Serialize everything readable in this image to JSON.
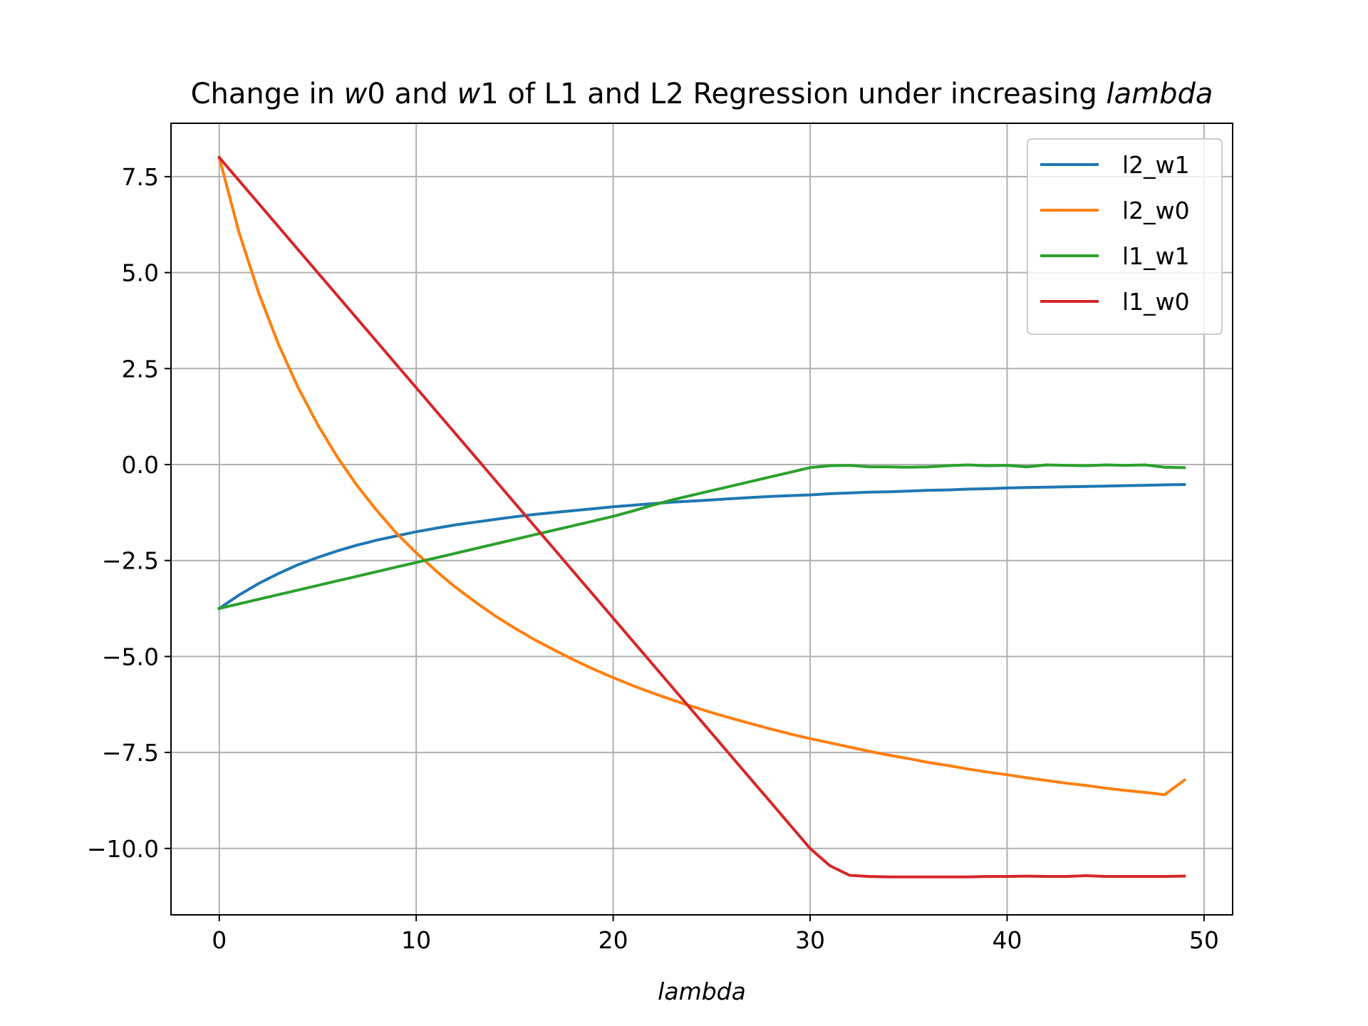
{
  "chart_data": {
    "type": "line",
    "title_parts": [
      {
        "text": "Change in ",
        "italic": false
      },
      {
        "text": "w",
        "italic": true
      },
      {
        "text": "0 and ",
        "italic": false
      },
      {
        "text": "w",
        "italic": true
      },
      {
        "text": "1 of L1 and L2 Regression under increasing ",
        "italic": false
      },
      {
        "text": "lambda",
        "italic": true
      }
    ],
    "xlabel": "lambda",
    "ylabel": "",
    "xlim": [
      -2.45,
      51.45
    ],
    "ylim": [
      -11.73,
      8.89
    ],
    "xticks": [
      0,
      10,
      20,
      30,
      40,
      50
    ],
    "xtick_labels": [
      "0",
      "10",
      "20",
      "30",
      "40",
      "50"
    ],
    "yticks": [
      7.5,
      5.0,
      2.5,
      0.0,
      -2.5,
      -5.0,
      -7.5,
      -10.0
    ],
    "ytick_labels": [
      "7.5",
      "5.0",
      "2.5",
      "0.0",
      "−2.5",
      "−5.0",
      "−7.5",
      "−10.0"
    ],
    "grid": true,
    "legend_position": "top-right",
    "x": [
      0,
      1,
      2,
      3,
      4,
      5,
      6,
      7,
      8,
      9,
      10,
      11,
      12,
      13,
      14,
      15,
      16,
      17,
      18,
      19,
      20,
      21,
      22,
      23,
      24,
      25,
      26,
      27,
      28,
      29,
      30,
      31,
      32,
      33,
      34,
      35,
      36,
      37,
      38,
      39,
      40,
      41,
      42,
      43,
      44,
      45,
      46,
      47,
      48,
      49
    ],
    "series": [
      {
        "name": "l2_w1",
        "color": "#1f77b4",
        "values": [
          -3.75,
          -3.4,
          -3.1,
          -2.84,
          -2.61,
          -2.42,
          -2.25,
          -2.1,
          -1.97,
          -1.86,
          -1.75,
          -1.66,
          -1.57,
          -1.5,
          -1.43,
          -1.36,
          -1.3,
          -1.25,
          -1.2,
          -1.15,
          -1.1,
          -1.06,
          -1.02,
          -0.98,
          -0.95,
          -0.92,
          -0.89,
          -0.86,
          -0.83,
          -0.81,
          -0.79,
          -0.76,
          -0.74,
          -0.72,
          -0.71,
          -0.69,
          -0.67,
          -0.66,
          -0.64,
          -0.63,
          -0.61,
          -0.6,
          -0.59,
          -0.58,
          -0.57,
          -0.56,
          -0.55,
          -0.54,
          -0.53,
          -0.52
        ]
      },
      {
        "name": "l2_w0",
        "color": "#ff7f0e",
        "values": [
          8.0,
          6.05,
          4.47,
          3.14,
          2.01,
          1.04,
          0.19,
          -0.55,
          -1.2,
          -1.79,
          -2.3,
          -2.77,
          -3.2,
          -3.58,
          -3.94,
          -4.26,
          -4.56,
          -4.83,
          -5.09,
          -5.33,
          -5.55,
          -5.76,
          -5.95,
          -6.13,
          -6.3,
          -6.46,
          -6.61,
          -6.75,
          -6.89,
          -7.02,
          -7.14,
          -7.25,
          -7.36,
          -7.47,
          -7.57,
          -7.66,
          -7.76,
          -7.84,
          -7.93,
          -8.01,
          -8.08,
          -8.16,
          -8.23,
          -8.3,
          -8.36,
          -8.43,
          -8.49,
          -8.54,
          -8.6,
          -8.22
        ]
      },
      {
        "name": "l1_w1",
        "color": "#2ca02c",
        "values": [
          -3.75,
          -3.63,
          -3.51,
          -3.39,
          -3.27,
          -3.15,
          -3.03,
          -2.91,
          -2.79,
          -2.67,
          -2.55,
          -2.43,
          -2.31,
          -2.19,
          -2.07,
          -1.95,
          -1.83,
          -1.71,
          -1.59,
          -1.47,
          -1.35,
          -1.21,
          -1.06,
          -0.92,
          -0.8,
          -0.68,
          -0.56,
          -0.44,
          -0.32,
          -0.2,
          -0.08,
          -0.03,
          -0.02,
          -0.06,
          -0.06,
          -0.07,
          -0.06,
          -0.03,
          -0.01,
          -0.03,
          -0.02,
          -0.06,
          -0.01,
          -0.02,
          -0.03,
          -0.01,
          -0.02,
          -0.01,
          -0.07,
          -0.08
        ]
      },
      {
        "name": "l1_w0",
        "color": "#d62728",
        "values": [
          8.0,
          7.4,
          6.8,
          6.2,
          5.6,
          5.0,
          4.4,
          3.8,
          3.2,
          2.6,
          2.0,
          1.4,
          0.8,
          0.2,
          -0.4,
          -1.0,
          -1.6,
          -2.2,
          -2.8,
          -3.4,
          -4.0,
          -4.6,
          -5.2,
          -5.8,
          -6.4,
          -7.0,
          -7.6,
          -8.2,
          -8.8,
          -9.4,
          -10.0,
          -10.45,
          -10.7,
          -10.73,
          -10.74,
          -10.74,
          -10.74,
          -10.74,
          -10.74,
          -10.73,
          -10.73,
          -10.72,
          -10.73,
          -10.73,
          -10.71,
          -10.73,
          -10.73,
          -10.73,
          -10.73,
          -10.72
        ]
      }
    ]
  }
}
